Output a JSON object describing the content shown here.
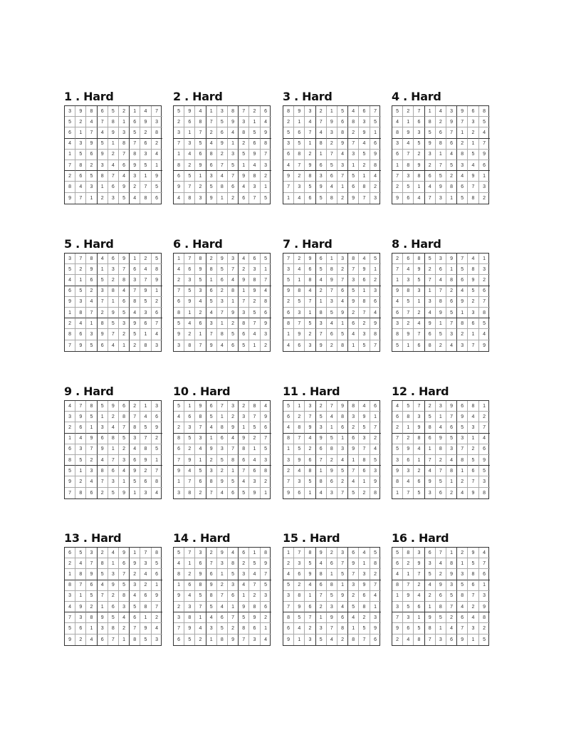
{
  "puzzles": [
    {
      "title": "1 . Hard",
      "rows": [
        "398652147",
        "524781693",
        "617493528",
        "439518762",
        "156927834",
        "782346951",
        "265874319",
        "843169275",
        "971235486"
      ]
    },
    {
      "title": "2 . Hard",
      "rows": [
        "594138726",
        "268759314",
        "317264859",
        "735491268",
        "146823597",
        "829675143",
        "651347982",
        "972586431",
        "483912675"
      ]
    },
    {
      "title": "3 . Hard",
      "rows": [
        "893215467",
        "214796835",
        "567438291",
        "351829746",
        "682174359",
        "479653128",
        "928367514",
        "735941682",
        "146582973"
      ]
    },
    {
      "title": "4 . Hard",
      "rows": [
        "527143968",
        "416829735",
        "893567124",
        "345986217",
        "672314859",
        "189275346",
        "738652491",
        "251498673",
        "964731582"
      ]
    },
    {
      "title": "5 . Hard",
      "rows": [
        "378469125",
        "529137648",
        "416528379",
        "652384791",
        "934716852",
        "187295436",
        "241853967",
        "863972514",
        "795641283"
      ]
    },
    {
      "title": "6 . Hard",
      "rows": [
        "178293465",
        "469857231",
        "235164987",
        "753628194",
        "694531728",
        "812479356",
        "546312879",
        "921785643",
        "387946512"
      ]
    },
    {
      "title": "7 . Hard",
      "rows": [
        "729613845",
        "346582791",
        "518497362",
        "984276513",
        "257134986",
        "631859274",
        "875341629",
        "192765438",
        "463928157"
      ]
    },
    {
      "title": "8 . Hard",
      "rows": [
        "268539741",
        "749261583",
        "135748692",
        "983172456",
        "451386927",
        "672495138",
        "324917865",
        "897653214",
        "516824379"
      ]
    },
    {
      "title": "9 . Hard",
      "rows": [
        "478596213",
        "395128746",
        "261347859",
        "149685372",
        "637912485",
        "852473691",
        "513864927",
        "924731568",
        "786259134"
      ]
    },
    {
      "title": "10 . Hard",
      "rows": [
        "519673284",
        "468512379",
        "237489156",
        "853164927",
        "624937815",
        "791258643",
        "945321768",
        "176895432",
        "382746591"
      ]
    },
    {
      "title": "11 . Hard",
      "rows": [
        "513279846",
        "627548391",
        "489316257",
        "874951632",
        "152683974",
        "396724185",
        "248195763",
        "735862419",
        "961437528"
      ]
    },
    {
      "title": "12 . Hard",
      "rows": [
        "457239681",
        "683517942",
        "219846537",
        "728695314",
        "594183726",
        "361724859",
        "932478165",
        "846951273",
        "175362498"
      ]
    },
    {
      "title": "13 . Hard",
      "rows": [
        "653249178",
        "247816935",
        "189537246",
        "876495321",
        "315728469",
        "492163587",
        "738954612",
        "561382794",
        "924671853"
      ]
    },
    {
      "title": "14 . Hard",
      "rows": [
        "573294618",
        "416738259",
        "829615347",
        "168923475",
        "945876123",
        "237541986",
        "381467592",
        "794352861",
        "652189734"
      ]
    },
    {
      "title": "15 . Hard",
      "rows": [
        "178923645",
        "235467918",
        "469815732",
        "524681397",
        "381759264",
        "796234581",
        "857196423",
        "642378159",
        "913542876"
      ]
    },
    {
      "title": "16 . Hard",
      "rows": [
        "583671294",
        "629348157",
        "417529386",
        "872493561",
        "194265873",
        "356187429",
        "731952648",
        "965814732",
        "248736915"
      ]
    }
  ]
}
